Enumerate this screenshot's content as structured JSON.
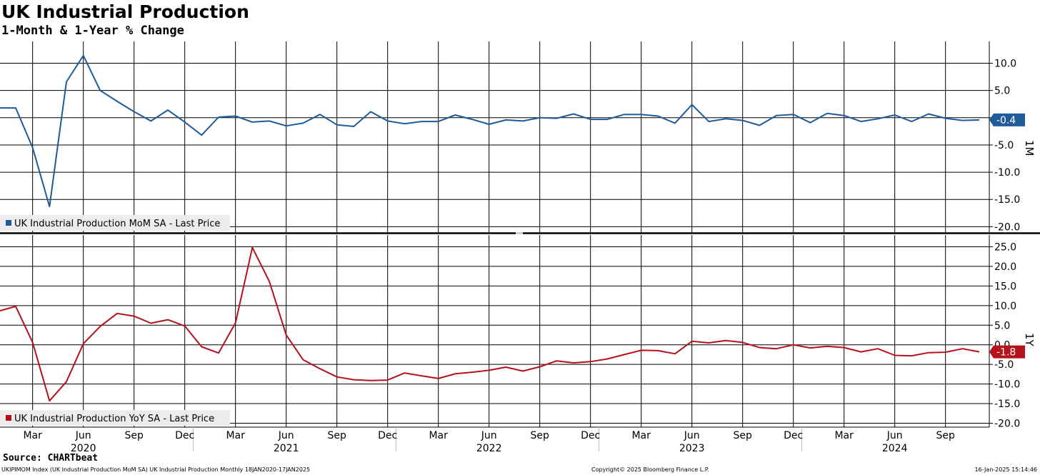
{
  "header": {
    "title": "UK Industrial Production",
    "subtitle": "1-Month & 1-Year % Change"
  },
  "footer": {
    "source": "Source: CHARTbeat",
    "security": "UKIPIMOM Index (UK Industrial Production MoM SA) UK Industrial Production  Monthly 18JAN2020-17JAN2025",
    "copyright": "Copyright© 2025 Bloomberg Finance L.P.",
    "timestamp": "16-Jan-2025 15:14:46"
  },
  "chart_data": [
    {
      "type": "line",
      "panel_label": "1M",
      "legend": "UK Industrial Production MoM SA - Last Price",
      "color": "#1f5b99",
      "last_value_label": "-0.4",
      "ylim": [
        -21,
        14
      ],
      "yticks": [
        10.0,
        5.0,
        0.0,
        -5.0,
        -10.0,
        -15.0,
        -20.0
      ],
      "ytick_labels": [
        "10.0",
        "5.0",
        "",
        "-5.0",
        "-10.0",
        "-15.0",
        "-20.0"
      ],
      "series": [
        {
          "x": [
            "2020-01",
            "2020-02",
            "2020-03",
            "2020-04",
            "2020-05",
            "2020-06",
            "2020-07",
            "2020-08",
            "2020-09",
            "2020-10",
            "2020-11",
            "2020-12",
            "2021-01",
            "2021-02",
            "2021-03",
            "2021-04",
            "2021-05",
            "2021-06",
            "2021-07",
            "2021-08",
            "2021-09",
            "2021-10",
            "2021-11",
            "2021-12",
            "2022-01",
            "2022-02",
            "2022-03",
            "2022-04",
            "2022-05",
            "2022-06",
            "2022-07",
            "2022-08",
            "2022-09",
            "2022-10",
            "2022-11",
            "2022-12",
            "2023-01",
            "2023-02",
            "2023-03",
            "2023-04",
            "2023-05",
            "2023-06",
            "2023-07",
            "2023-08",
            "2023-09",
            "2023-10",
            "2023-11",
            "2023-12",
            "2024-01",
            "2024-02",
            "2024-03",
            "2024-04",
            "2024-05",
            "2024-06",
            "2024-07",
            "2024-08",
            "2024-09",
            "2024-10",
            "2024-11"
          ],
          "values": [
            1.8,
            1.8,
            -5.5,
            -16.3,
            6.6,
            11.4,
            5.0,
            3.0,
            1.1,
            -0.6,
            1.4,
            -0.8,
            -3.2,
            0.1,
            0.3,
            -0.8,
            -0.6,
            -1.5,
            -1.0,
            0.6,
            -1.3,
            -1.6,
            1.1,
            -0.6,
            -1.1,
            -0.7,
            -0.7,
            0.5,
            -0.3,
            -1.2,
            -0.4,
            -0.6,
            0.0,
            -0.1,
            0.7,
            -0.3,
            -0.3,
            0.6,
            0.6,
            0.3,
            -1.0,
            2.4,
            -0.7,
            -0.2,
            -0.5,
            -1.4,
            0.4,
            0.6,
            -0.9,
            0.8,
            0.4,
            -0.7,
            -0.2,
            0.5,
            -0.7,
            0.7,
            -0.1,
            -0.5,
            -0.4
          ]
        }
      ]
    },
    {
      "type": "line",
      "panel_label": "1Y",
      "legend": "UK Industrial Production YoY SA - Last Price",
      "color": "#b5121b",
      "last_value_label": "-1.8",
      "ylim": [
        -21,
        28
      ],
      "yticks": [
        25.0,
        20.0,
        15.0,
        10.0,
        5.0,
        0.0,
        -5.0,
        -10.0,
        -15.0,
        -20.0
      ],
      "ytick_labels": [
        "25.0",
        "20.0",
        "15.0",
        "10.0",
        "5.0",
        "0.0",
        "-5.0",
        "-10.0",
        "-15.0",
        "-20.0"
      ],
      "series": [
        {
          "x": [
            "2020-01",
            "2020-02",
            "2020-03",
            "2020-04",
            "2020-05",
            "2020-06",
            "2020-07",
            "2020-08",
            "2020-09",
            "2020-10",
            "2020-11",
            "2020-12",
            "2021-01",
            "2021-02",
            "2021-03",
            "2021-04",
            "2021-05",
            "2021-06",
            "2021-07",
            "2021-08",
            "2021-09",
            "2021-10",
            "2021-11",
            "2021-12",
            "2022-01",
            "2022-02",
            "2022-03",
            "2022-04",
            "2022-05",
            "2022-06",
            "2022-07",
            "2022-08",
            "2022-09",
            "2022-10",
            "2022-11",
            "2022-12",
            "2023-01",
            "2023-02",
            "2023-03",
            "2023-04",
            "2023-05",
            "2023-06",
            "2023-07",
            "2023-08",
            "2023-09",
            "2023-10",
            "2023-11",
            "2023-12",
            "2024-01",
            "2024-02",
            "2024-03",
            "2024-04",
            "2024-05",
            "2024-06",
            "2024-07",
            "2024-08",
            "2024-09",
            "2024-10",
            "2024-11"
          ],
          "values": [
            8.6,
            9.8,
            0.6,
            -14.3,
            -9.4,
            0.3,
            4.7,
            8.0,
            7.3,
            5.5,
            6.4,
            4.8,
            -0.5,
            -2.1,
            5.6,
            24.8,
            16.2,
            2.5,
            -3.8,
            -6.1,
            -8.2,
            -8.9,
            -9.1,
            -9.0,
            -7.2,
            -7.9,
            -8.6,
            -7.4,
            -7.0,
            -6.5,
            -5.7,
            -6.7,
            -5.6,
            -4.1,
            -4.6,
            -4.3,
            -3.6,
            -2.5,
            -1.4,
            -1.5,
            -2.3,
            0.9,
            0.5,
            1.1,
            0.6,
            -0.7,
            -1.0,
            0.0,
            -0.8,
            -0.4,
            -0.7,
            -1.8,
            -1.0,
            -2.7,
            -2.8,
            -2.0,
            -1.9,
            -1.0,
            -1.8
          ]
        }
      ]
    }
  ],
  "x_axis": {
    "months": [
      "Mar",
      "Jun",
      "Sep",
      "Dec",
      "Mar",
      "Jun",
      "Sep",
      "Dec",
      "Mar",
      "Jun",
      "Sep",
      "Dec",
      "Mar",
      "Jun",
      "Sep",
      "Dec",
      "Mar",
      "Jun",
      "Sep"
    ],
    "month_dates": [
      "2020-03",
      "2020-06",
      "2020-09",
      "2020-12",
      "2021-03",
      "2021-06",
      "2021-09",
      "2021-12",
      "2022-03",
      "2022-06",
      "2022-09",
      "2022-12",
      "2023-03",
      "2023-06",
      "2023-09",
      "2023-12",
      "2024-03",
      "2024-06",
      "2024-09"
    ],
    "years": [
      "2020",
      "2021",
      "2022",
      "2023",
      "2024"
    ],
    "year_dates": [
      "2020-06",
      "2021-06",
      "2022-06",
      "2023-06",
      "2024-06"
    ],
    "range": [
      "2020-01",
      "2024-12"
    ]
  }
}
